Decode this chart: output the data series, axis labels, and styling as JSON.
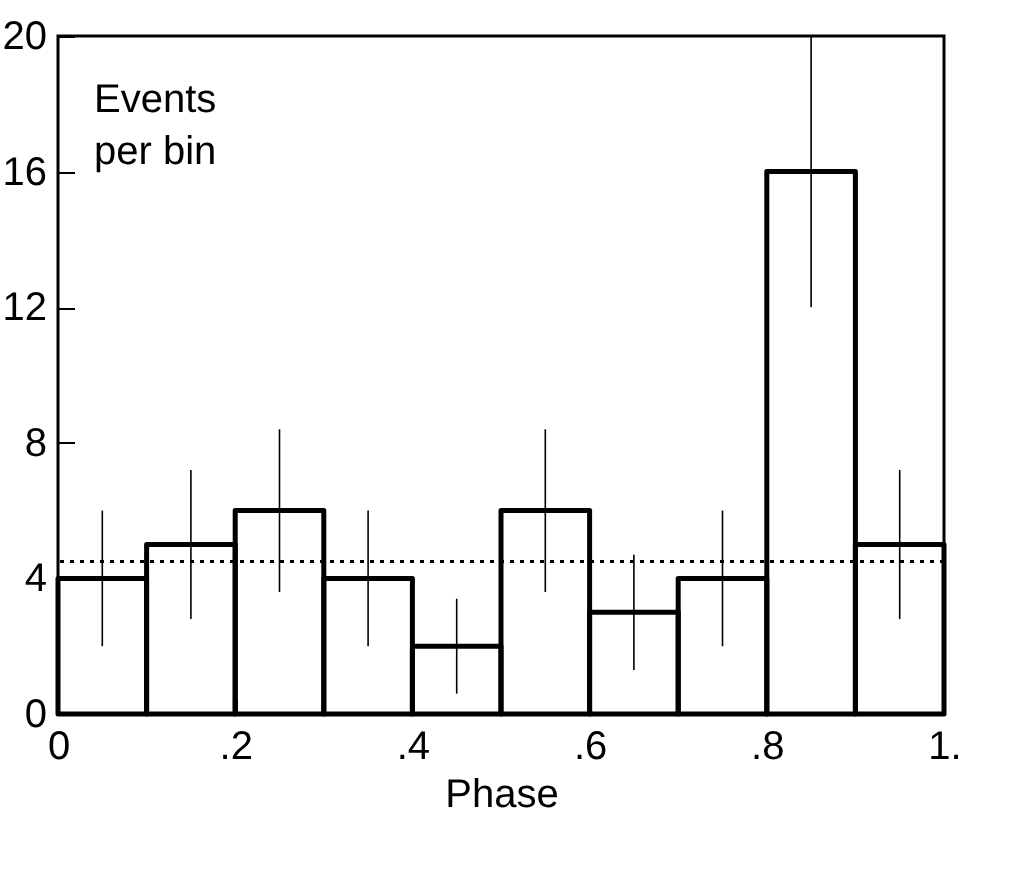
{
  "chart_data": {
    "type": "histogram",
    "xlabel": "Phase",
    "annotations": [
      "Events per bin"
    ],
    "bins": [
      0,
      0.1,
      0.2,
      0.3,
      0.4,
      0.5,
      0.6,
      0.7,
      0.8,
      0.9,
      1
    ],
    "values": [
      4,
      5,
      6,
      4,
      2,
      6,
      3,
      4,
      16,
      5
    ],
    "errors": [
      2,
      2.2,
      2.4,
      2,
      1.4,
      2.4,
      1.7,
      2,
      4,
      2.2
    ],
    "color": "#000000",
    "xlim": [
      0,
      1
    ],
    "xticks": [
      0,
      {
        "value": 0.2,
        "label": ".2"
      },
      {
        "value": 0.4,
        "label": ".4"
      },
      {
        "value": 0.6,
        "label": ".6"
      },
      {
        "value": 0.8,
        "label": ".8"
      },
      {
        "value": 1,
        "label": "1."
      }
    ],
    "ylim": [
      0,
      20
    ],
    "yticks": [
      0,
      4,
      8,
      12,
      16,
      20
    ],
    "ref_lines": [
      {
        "axis": "y",
        "value": 4.5,
        "line_style": "dotted",
        "color": "#000000"
      }
    ],
    "grid": false
  }
}
